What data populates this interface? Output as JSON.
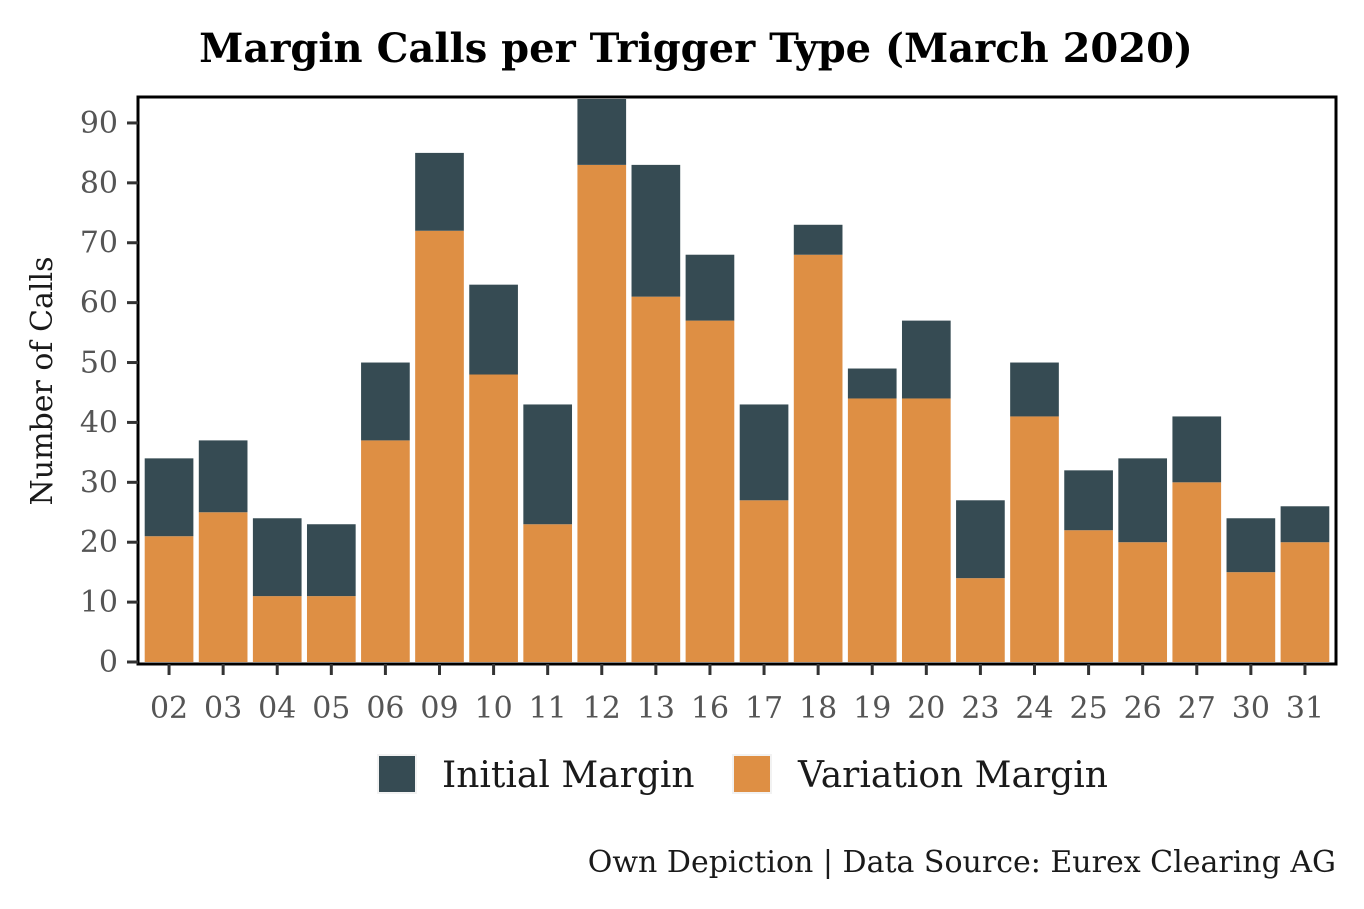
{
  "chart_data": {
    "type": "bar",
    "stacked": true,
    "title": "Margin Calls per Trigger Type (March 2020)",
    "ylabel": "Number of Calls",
    "xlabel": "",
    "ylim": [
      0,
      94
    ],
    "yticks": [
      0,
      10,
      20,
      30,
      40,
      50,
      60,
      70,
      80,
      90
    ],
    "categories": [
      "02",
      "03",
      "04",
      "05",
      "06",
      "09",
      "10",
      "11",
      "12",
      "13",
      "16",
      "17",
      "18",
      "19",
      "20",
      "23",
      "24",
      "25",
      "26",
      "27",
      "30",
      "31"
    ],
    "series": [
      {
        "name": "Variation Margin",
        "color": "#DE8F44",
        "values": [
          21,
          25,
          11,
          11,
          37,
          72,
          48,
          23,
          83,
          61,
          57,
          27,
          68,
          44,
          44,
          14,
          41,
          22,
          20,
          30,
          15,
          20
        ]
      },
      {
        "name": "Initial Margin",
        "color": "#364B53",
        "values": [
          13,
          12,
          13,
          12,
          13,
          13,
          15,
          20,
          11,
          22,
          11,
          16,
          5,
          5,
          13,
          13,
          9,
          10,
          14,
          11,
          9,
          6
        ]
      }
    ],
    "legend": {
      "position": "bottom",
      "order": [
        "Initial Margin",
        "Variation Margin"
      ]
    },
    "grid": false,
    "caption": "Own Depiction | Data Source: Eurex Clearing AG"
  }
}
